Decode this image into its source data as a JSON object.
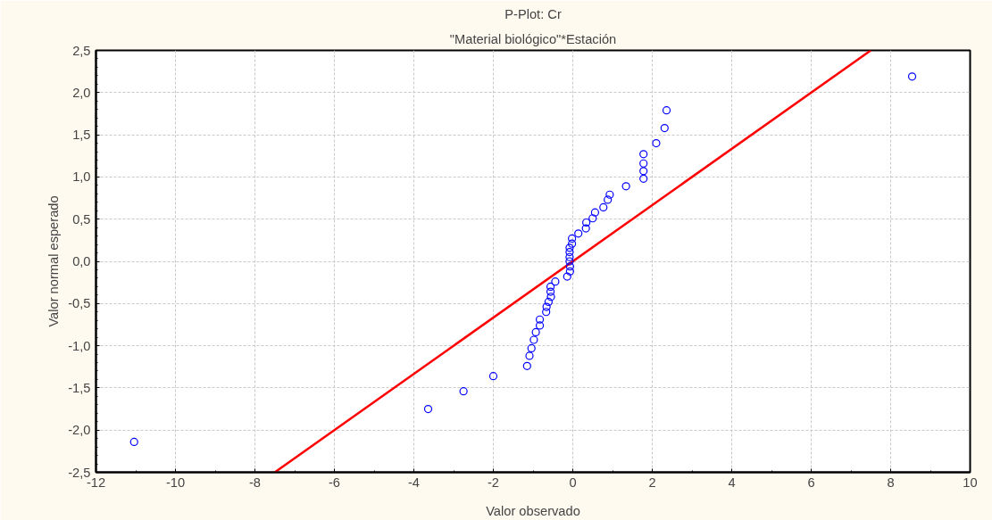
{
  "chart_data": {
    "type": "scatter",
    "title": "P-Plot: Cr",
    "subtitle": "\"Material biológico\"*Estación",
    "xlabel": "Valor observado",
    "ylabel": "Valor normal esperado",
    "series": [
      {
        "color": "#0000ff",
        "marker": "circle",
        "x": [
          -11.04,
          -3.64,
          -2.75,
          -2.0,
          -1.15,
          -1.09,
          -1.04,
          -0.98,
          -0.93,
          -0.83,
          -0.83,
          -0.67,
          -0.66,
          -0.61,
          -0.55,
          -0.56,
          -0.56,
          -0.44,
          -0.14,
          -0.07,
          -0.07,
          -0.08,
          -0.08,
          -0.08,
          -0.08,
          -0.02,
          -0.02,
          0.14,
          0.33,
          0.34,
          0.5,
          0.56,
          0.77,
          0.88,
          0.93,
          1.34,
          1.78,
          1.78,
          1.78,
          1.78,
          2.1,
          2.31,
          2.36,
          8.54
        ],
        "values": [
          -2.14,
          -1.75,
          -1.54,
          -1.36,
          -1.24,
          -1.12,
          -1.03,
          -0.93,
          -0.84,
          -0.76,
          -0.69,
          -0.6,
          -0.54,
          -0.48,
          -0.42,
          -0.36,
          -0.3,
          -0.24,
          -0.18,
          -0.12,
          -0.06,
          0.0,
          0.05,
          0.11,
          0.16,
          0.21,
          0.27,
          0.33,
          0.39,
          0.46,
          0.51,
          0.58,
          0.64,
          0.73,
          0.79,
          0.89,
          0.98,
          1.07,
          1.16,
          1.27,
          1.4,
          1.58,
          1.79,
          2.19
        ]
      },
      {
        "type": "line",
        "color": "#ff0000",
        "marker": "none",
        "line_style": "solid",
        "x": [
          -7.5,
          7.5
        ],
        "values": [
          -2.5,
          2.5
        ]
      }
    ],
    "xlim": [
      -12,
      10
    ],
    "xticks": [
      -12,
      -10,
      -8,
      -6,
      -4,
      -2,
      0,
      2,
      4,
      6,
      8,
      10
    ],
    "ylim": [
      -2.5,
      2.5
    ],
    "yticks": [
      {
        "value": -2.5,
        "label": "-2,5"
      },
      {
        "value": -2.0,
        "label": "-2,0"
      },
      {
        "value": -1.5,
        "label": "-1,5"
      },
      {
        "value": -1.0,
        "label": "-1,0"
      },
      {
        "value": -0.5,
        "label": "-0,5"
      },
      {
        "value": 0.0,
        "label": "0,0"
      },
      {
        "value": 0.5,
        "label": "0,5"
      },
      {
        "value": 1.0,
        "label": "1,0"
      },
      {
        "value": 1.5,
        "label": "1,5"
      },
      {
        "value": 2.0,
        "label": "2,0"
      },
      {
        "value": 2.5,
        "label": "2,5"
      }
    ],
    "grid": true
  }
}
